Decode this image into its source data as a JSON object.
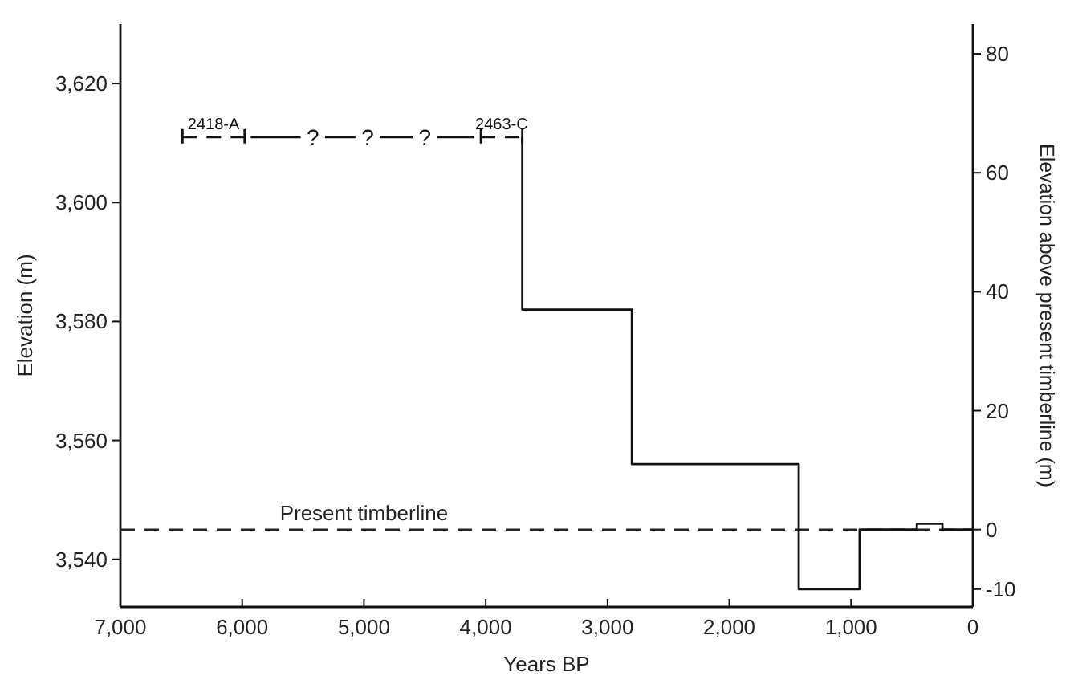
{
  "chart_data": {
    "type": "step",
    "xlabel": "Years BP",
    "ylabel": "Elevation (m)",
    "y2label": "Elevation above present timberline (m)",
    "xlim": [
      7000,
      0
    ],
    "xticks": [
      {
        "value": 7000,
        "label": "7,000"
      },
      {
        "value": 6000,
        "label": "6,000"
      },
      {
        "value": 5000,
        "label": "5,000"
      },
      {
        "value": 4000,
        "label": "4,000"
      },
      {
        "value": 3000,
        "label": "3,000"
      },
      {
        "value": 2000,
        "label": "2,000"
      },
      {
        "value": 1000,
        "label": "1,000"
      },
      0
    ],
    "ylim": [
      3532,
      3630
    ],
    "yticks": [
      {
        "value": 3540,
        "label": "3,540"
      },
      {
        "value": 3560,
        "label": "3,560"
      },
      {
        "value": 3580,
        "label": "3,580"
      },
      {
        "value": 3600,
        "label": "3,600"
      },
      {
        "value": 3620,
        "label": "3,620"
      }
    ],
    "y2lim": [
      -13,
      85
    ],
    "y2ticks": [
      -10,
      0,
      20,
      40,
      60,
      80
    ],
    "grid": false,
    "marker": "none",
    "series": [
      {
        "type": "step",
        "color": "#111111",
        "line_style": "solid",
        "x": [
          3700,
          2800,
          1430,
          930,
          460,
          250,
          0
        ],
        "values": [
          3611,
          3582,
          3556,
          3535,
          3545,
          3546,
          3545
        ]
      },
      {
        "type": "line",
        "name": "2418-A",
        "color": "#111111",
        "line_style": "dashed",
        "x": [
          6490,
          5980
        ],
        "values": [
          3611,
          3611
        ]
      },
      {
        "type": "line",
        "color": "#111111",
        "line_style": "solid",
        "x": [
          5930,
          5520,
          5420,
          5320,
          5070,
          4970,
          4870,
          4600,
          4500,
          4400,
          4100
        ],
        "values": [
          3611,
          3611,
          null,
          3611,
          3611,
          null,
          3611,
          3611,
          null,
          3611,
          3611
        ]
      },
      {
        "type": "line",
        "name": "2463-C",
        "color": "#111111",
        "line_style": "dashed",
        "x": [
          4040,
          3700
        ],
        "values": [
          3611,
          3611
        ]
      }
    ],
    "ref_lines": [
      {
        "axis": "y",
        "value": 3545,
        "label": "Present timberline",
        "line_style": "dashed",
        "color": "#222222"
      }
    ],
    "annotations": [
      "?",
      "?",
      "?"
    ]
  }
}
